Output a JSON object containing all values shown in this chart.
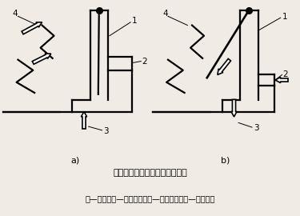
{
  "title": "图４－１１　三通切换结构示意",
  "caption": "１—阀板　２—反吹通道　３—仓室通道　４—净气通道",
  "bg_color": "#f0ebe4",
  "lw": 1.6,
  "lw_thin": 0.7,
  "label_a": "a)",
  "label_b": "b)",
  "font_title": 8.0,
  "font_caption": 7.0,
  "font_label": 7.5
}
